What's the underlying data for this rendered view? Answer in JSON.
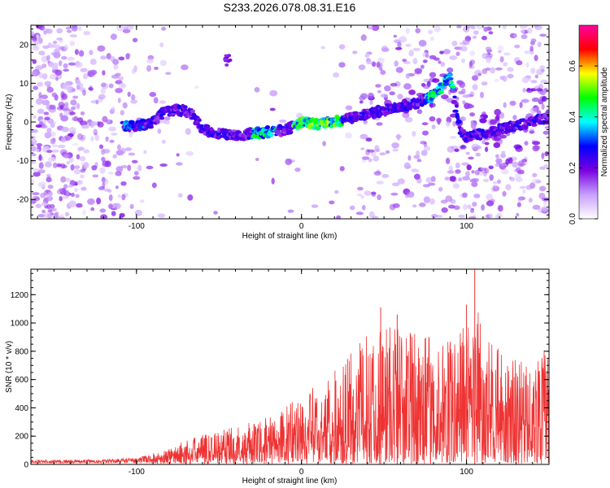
{
  "title": "S233.2026.078.08.31.E16",
  "chart_data": [
    {
      "type": "heatmap",
      "xlabel": "Height of straight line (km)",
      "ylabel": "Frequency (Hz)",
      "xlim": [
        -164,
        150
      ],
      "ylim": [
        -25,
        25
      ],
      "xticks": [
        -100,
        0,
        100
      ],
      "yticks": [
        -20,
        -10,
        0,
        10,
        20
      ],
      "colorbar": {
        "label": "Normalized spectral amplitude",
        "range": [
          0,
          0.76
        ],
        "ticks": [
          "0.0",
          "0.2",
          "0.4",
          "0.6"
        ],
        "tick_values": [
          0,
          0.2,
          0.4,
          0.6
        ],
        "colors": [
          "#ffffff",
          "#c8a0ff",
          "#7a00e0",
          "#0000ff",
          "#00ffff",
          "#00ff00",
          "#ffff00",
          "#ff0000",
          "#ff00a0"
        ]
      },
      "ridge": {
        "x": [
          -108,
          -100,
          -92,
          -85,
          -78,
          -72,
          -66,
          -60,
          -50,
          -40,
          -30,
          -20,
          -10,
          0,
          10,
          20,
          30,
          40,
          50,
          60,
          70,
          80,
          85,
          90,
          92,
          96,
          100,
          110,
          120,
          130,
          140,
          150
        ],
        "y": [
          -1,
          -1,
          -0.5,
          2,
          3,
          3,
          2,
          -2,
          -3,
          -3.5,
          -3,
          -2.5,
          -2,
          0,
          -0.5,
          0,
          1,
          2,
          3,
          4,
          5,
          7,
          9,
          12,
          8,
          -2,
          -4,
          -3,
          -2,
          -1,
          0,
          1
        ]
      },
      "isolated_feature": {
        "x": -45,
        "y": 16
      }
    },
    {
      "type": "line",
      "xlabel": "Height of straight line (km)",
      "ylabel": "SNR (10 * v/v)",
      "xlim": [
        -164,
        150
      ],
      "ylim": [
        0,
        1380
      ],
      "xticks": [
        -100,
        0,
        100
      ],
      "yticks": [
        0,
        200,
        400,
        600,
        800,
        1000,
        1200
      ],
      "color": "#ee3333",
      "envelope": {
        "x": [
          -164,
          -120,
          -100,
          -90,
          -80,
          -65,
          -55,
          -45,
          -35,
          -25,
          -15,
          -5,
          5,
          15,
          25,
          35,
          45,
          55,
          65,
          75,
          85,
          95,
          100,
          105,
          110,
          120,
          130,
          140,
          150
        ],
        "y": [
          25,
          30,
          45,
          70,
          110,
          190,
          230,
          270,
          280,
          300,
          360,
          480,
          520,
          600,
          720,
          850,
          1000,
          1050,
          950,
          900,
          860,
          900,
          1100,
          1380,
          900,
          800,
          750,
          700,
          850
        ]
      },
      "peaks": [
        {
          "x": 105,
          "y": 1380
        },
        {
          "x": 100,
          "y": 1130
        },
        {
          "x": 48,
          "y": 1110
        },
        {
          "x": 58,
          "y": 1060
        }
      ]
    }
  ]
}
